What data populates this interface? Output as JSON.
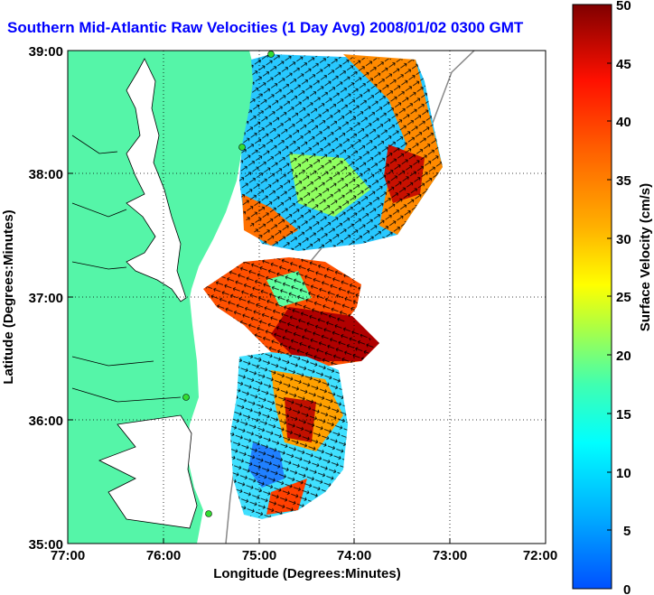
{
  "title": "Southern Mid-Atlantic Raw Velocities (1 Day Avg) 2008/01/02 0300 GMT",
  "x_axis": {
    "label": "Longitude (Degrees:Minutes)",
    "ticks": [
      "77:00",
      "76:00",
      "75:00",
      "74:00",
      "73:00",
      "72:00"
    ]
  },
  "y_axis": {
    "label": "Latitude (Degrees:Minutes)",
    "ticks": [
      "39:00",
      "38:00",
      "37:00",
      "36:00",
      "35:00"
    ]
  },
  "colorbar": {
    "label": "Surface Velocity (cm/s)",
    "ticks": [
      "50",
      "45",
      "40",
      "35",
      "30",
      "25",
      "20",
      "15",
      "10",
      "5",
      "0"
    ],
    "min": 0,
    "max": 50
  },
  "colors": {
    "land": "#55f5a8",
    "title": "#0000ff",
    "station": "#33dd33"
  }
}
